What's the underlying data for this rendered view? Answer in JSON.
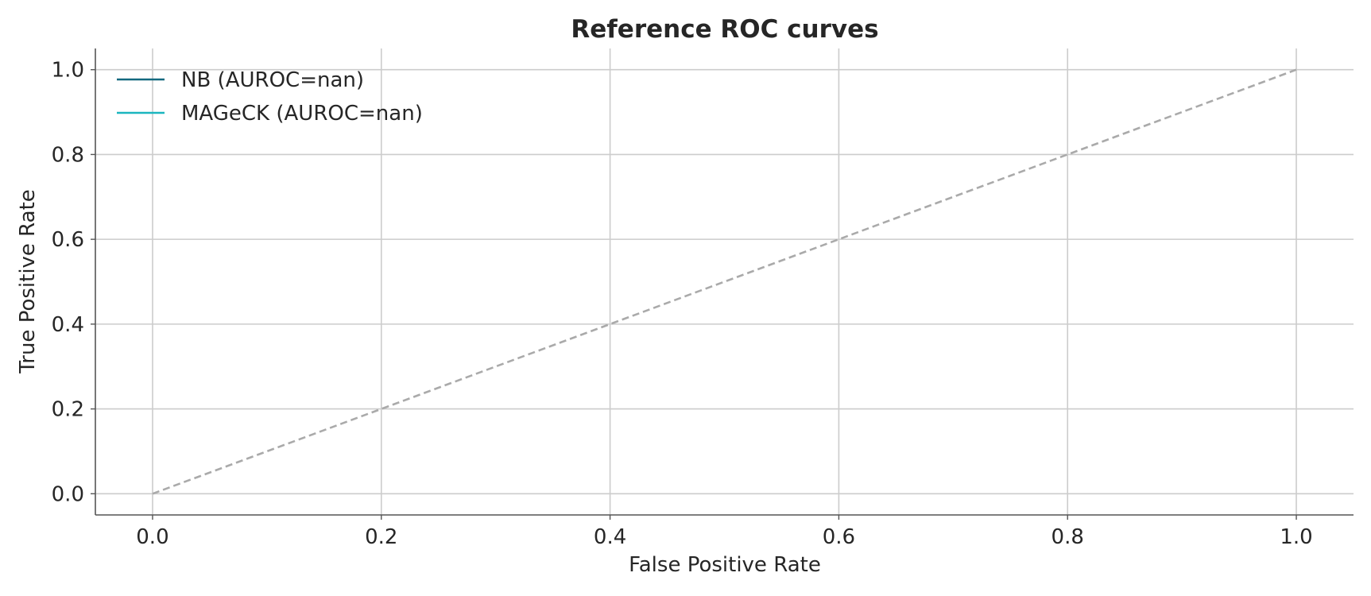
{
  "chart_data": {
    "type": "line",
    "title": "Reference ROC curves",
    "xlabel": "False Positive Rate",
    "ylabel": "True Positive Rate",
    "xlim": [
      -0.05,
      1.05
    ],
    "ylim": [
      -0.05,
      1.05
    ],
    "xticks": [
      0.0,
      0.2,
      0.4,
      0.6,
      0.8,
      1.0
    ],
    "yticks": [
      0.0,
      0.2,
      0.4,
      0.6,
      0.8,
      1.0
    ],
    "xtick_labels": [
      "0.0",
      "0.2",
      "0.4",
      "0.6",
      "0.8",
      "1.0"
    ],
    "ytick_labels": [
      "0.0",
      "0.2",
      "0.4",
      "0.6",
      "0.8",
      "1.0"
    ],
    "grid": true,
    "legend_position": "top-left",
    "series": [
      {
        "name": "NB (AUROC=nan)",
        "color": "#13697f",
        "x": [],
        "y": []
      },
      {
        "name": "MAGeCK (AUROC=nan)",
        "color": "#1bb6bf",
        "x": [],
        "y": []
      }
    ],
    "reference_line": {
      "x": [
        0,
        1
      ],
      "y": [
        0,
        1
      ],
      "color": "#aaaaaa",
      "style": "dashed"
    }
  }
}
